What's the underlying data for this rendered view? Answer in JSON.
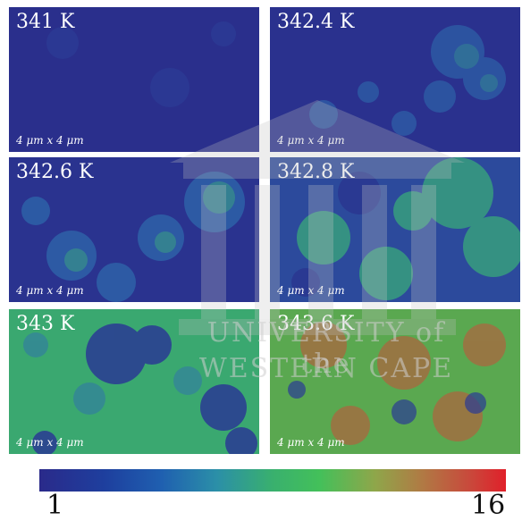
{
  "panels": [
    {
      "temperature": "341 K",
      "scale": "4 μm x 4 μm"
    },
    {
      "temperature": "342.4 K",
      "scale": "4 μm x 4 μm"
    },
    {
      "temperature": "342.6 K",
      "scale": "4 μm x 4 μm"
    },
    {
      "temperature": "342.8 K",
      "scale": "4 μm x 4 μm"
    },
    {
      "temperature": "343 K",
      "scale": "4 μm x 4 μm"
    },
    {
      "temperature": "343.6 K",
      "scale": "4 μm x 4 μm"
    }
  ],
  "colorbar": {
    "min_label": "1",
    "max_label": "16"
  },
  "watermark": {
    "line1": "UNIVERSITY of the",
    "line2": "WESTERN CAPE"
  },
  "colors": {
    "background": "#2a2a8a",
    "low": "#1f5fb0",
    "mid": "#39b06e",
    "high": "#e0202a"
  }
}
